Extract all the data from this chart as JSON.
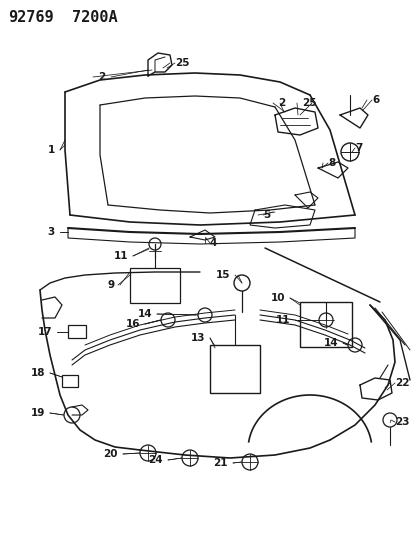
{
  "title_line1": "92769",
  "title_line2": "7200A",
  "bg_color": "#ffffff",
  "line_color": "#1a1a1a",
  "fig_width": 4.14,
  "fig_height": 5.33,
  "dpi": 100
}
